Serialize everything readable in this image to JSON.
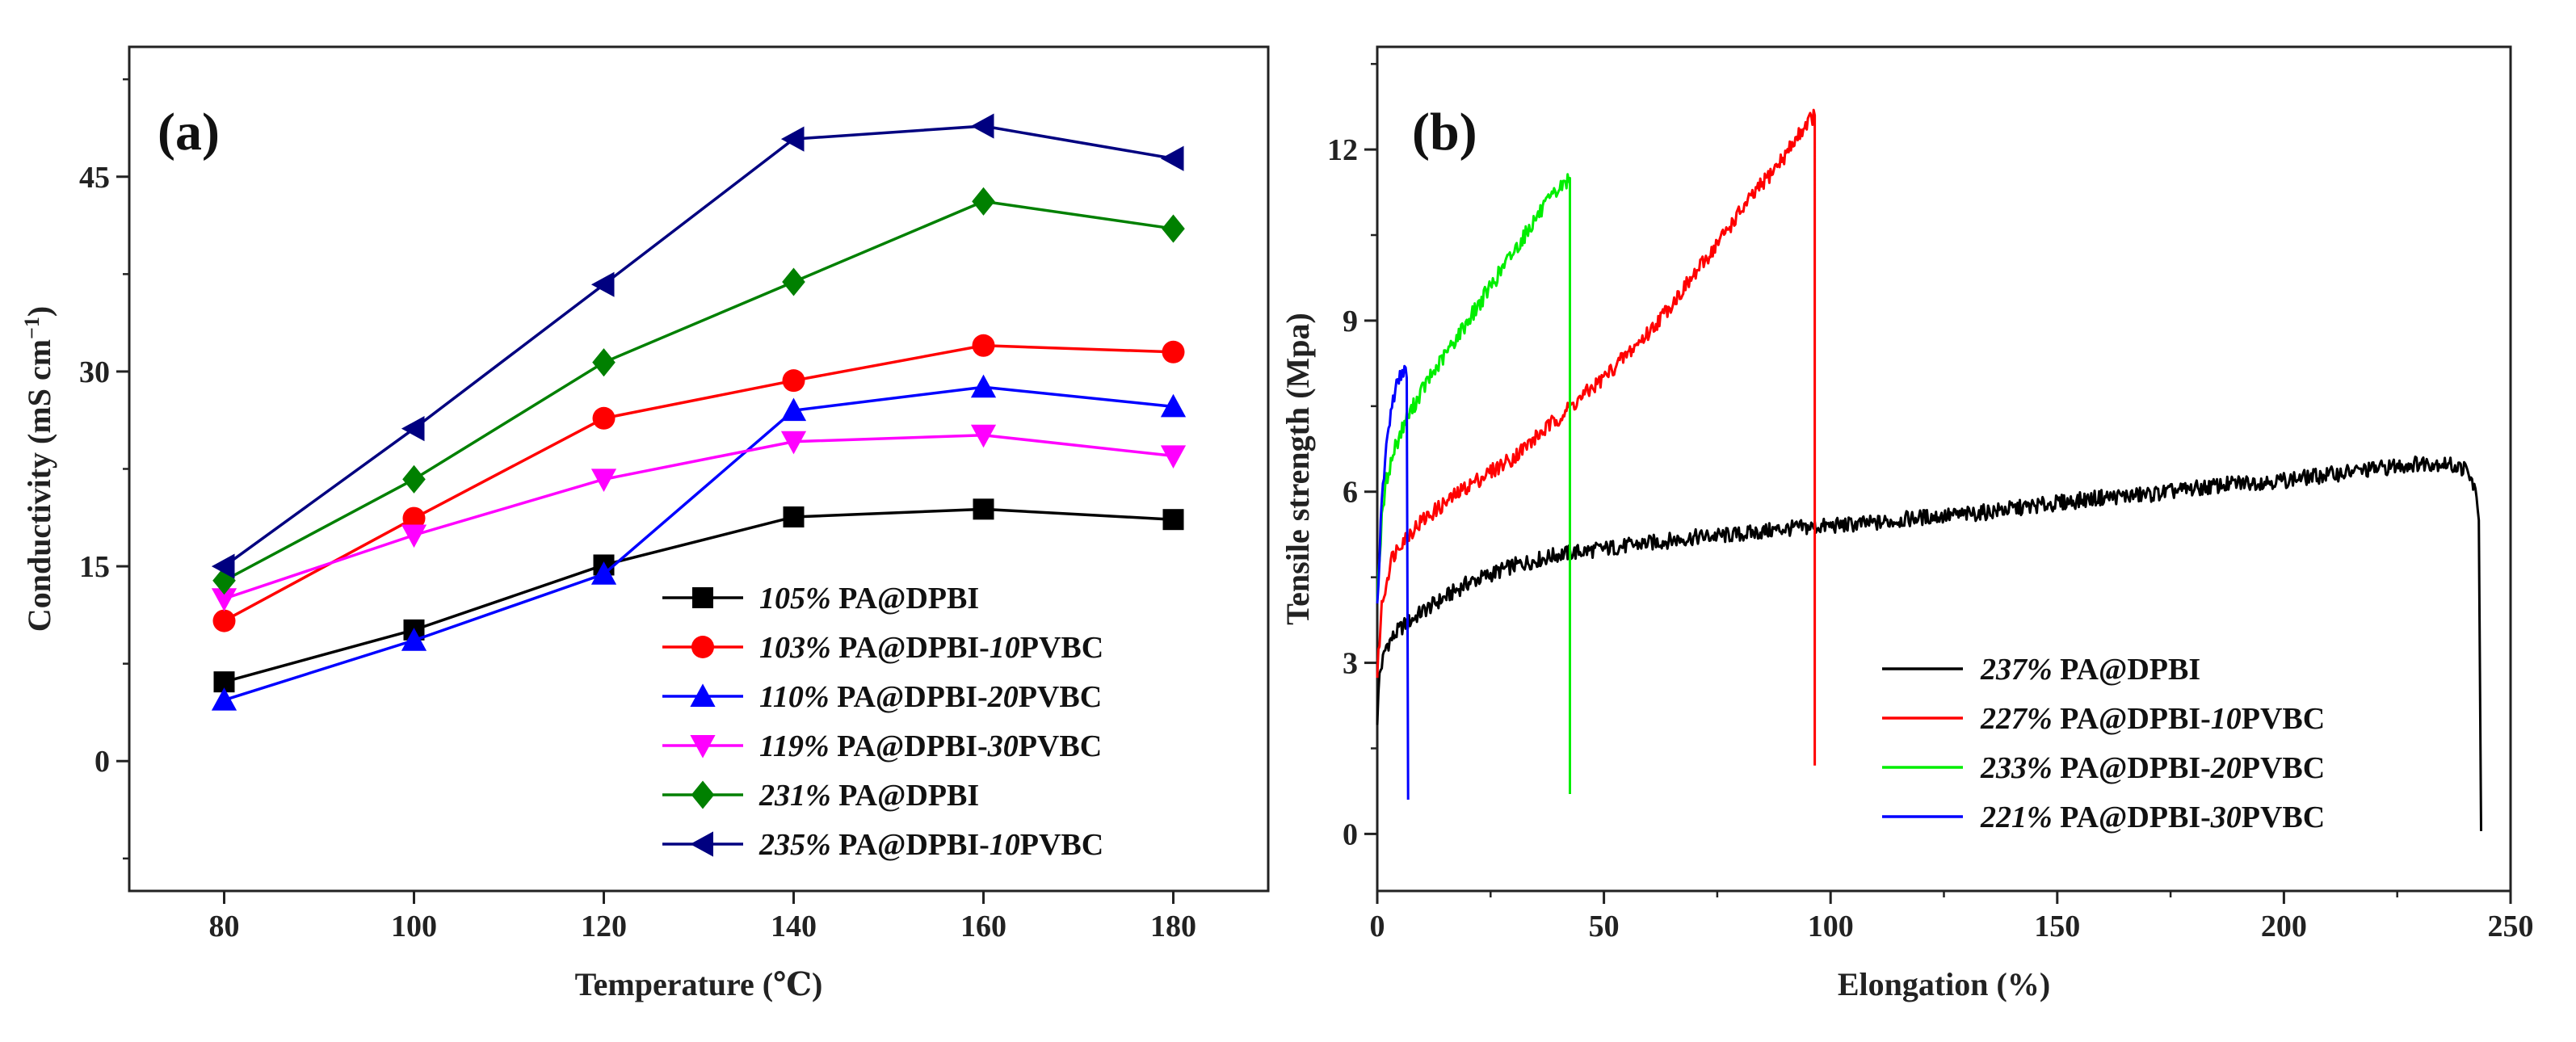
{
  "chart_data": [
    {
      "type": "line",
      "panel_label": "(a)",
      "xlabel": "Temperature (℃)",
      "ylabel": "Conductivity (mS cm",
      "ylabel_sup": "−1",
      "ylabel_close": ")",
      "xlim": [
        70,
        190
      ],
      "ylim": [
        -10,
        55
      ],
      "xticks": [
        80,
        100,
        120,
        140,
        160,
        180
      ],
      "yticks": [
        0,
        15,
        30,
        45
      ],
      "x": [
        80,
        100,
        120,
        140,
        160,
        180
      ],
      "legend_position": "bottom-right",
      "series": [
        {
          "pct": "105%",
          "a": " PA@DPBI",
          "ai": "",
          "b": "",
          "marker": "square",
          "color": "#000000",
          "values": [
            6.1,
            10.1,
            15.1,
            18.8,
            19.4,
            18.6
          ]
        },
        {
          "pct": "103%",
          "a": " PA@DPBI-",
          "ai": "10",
          "b": "PVBC",
          "marker": "circle",
          "color": "#ff0000",
          "values": [
            10.8,
            18.7,
            26.4,
            29.3,
            32.0,
            31.5
          ]
        },
        {
          "pct": "110%",
          "a": " PA@DPBI-",
          "ai": "20",
          "b": "PVBC",
          "marker": "triangle-up",
          "color": "#0000ff",
          "values": [
            4.7,
            9.3,
            14.4,
            27.0,
            28.8,
            27.3
          ]
        },
        {
          "pct": "119%",
          "a": " PA@DPBI-",
          "ai": "30",
          "b": "PVBC",
          "marker": "triangle-down",
          "color": "#ff00ff",
          "values": [
            12.5,
            17.4,
            21.7,
            24.6,
            25.1,
            23.5
          ]
        },
        {
          "pct": "231%",
          "a": " PA@DPBI",
          "ai": "",
          "b": "",
          "marker": "diamond",
          "color": "#008000",
          "values": [
            13.9,
            21.7,
            30.7,
            36.9,
            43.1,
            41.0
          ]
        },
        {
          "pct": "235%",
          "a": " PA@DPBI-",
          "ai": "10",
          "b": "PVBC",
          "marker": "triangle-left",
          "color": "#000080",
          "values": [
            15.0,
            25.6,
            36.7,
            47.9,
            48.9,
            46.4
          ]
        }
      ]
    },
    {
      "type": "line",
      "panel_label": "(b)",
      "xlabel": "Elongation (%)",
      "ylabel": "Tensile strength (Mpa)",
      "xlim": [
        0,
        250
      ],
      "ylim": [
        -1,
        13.8
      ],
      "xticks": [
        0,
        50,
        100,
        150,
        200,
        250
      ],
      "yticks": [
        0,
        3,
        6,
        9,
        12
      ],
      "legend_position": "bottom-right",
      "series": [
        {
          "pct": "237%",
          "a": " PA@DPBI",
          "ai": "",
          "b": "",
          "color": "#000000",
          "points": [
            [
              0,
              2.0
            ],
            [
              0.5,
              2.8
            ],
            [
              2,
              3.3
            ],
            [
              5,
              3.6
            ],
            [
              10,
              3.9
            ],
            [
              20,
              4.4
            ],
            [
              30,
              4.7
            ],
            [
              40,
              4.9
            ],
            [
              50,
              5.0
            ],
            [
              60,
              5.1
            ],
            [
              70,
              5.2
            ],
            [
              80,
              5.25
            ],
            [
              90,
              5.35
            ],
            [
              100,
              5.4
            ],
            [
              110,
              5.45
            ],
            [
              120,
              5.55
            ],
            [
              130,
              5.6
            ],
            [
              140,
              5.7
            ],
            [
              150,
              5.8
            ],
            [
              160,
              5.9
            ],
            [
              170,
              5.95
            ],
            [
              180,
              6.05
            ],
            [
              190,
              6.15
            ],
            [
              200,
              6.2
            ],
            [
              210,
              6.3
            ],
            [
              220,
              6.4
            ],
            [
              230,
              6.5
            ],
            [
              235,
              6.5
            ],
            [
              240,
              6.4
            ],
            [
              242,
              6.1
            ],
            [
              243,
              5.5
            ],
            [
              243.5,
              0.05
            ]
          ]
        },
        {
          "pct": "227%",
          "a": " PA@DPBI-",
          "ai": "10",
          "b": "PVBC",
          "color": "#ff0000",
          "points": [
            [
              0,
              2.8
            ],
            [
              1,
              4.0
            ],
            [
              3,
              4.8
            ],
            [
              5,
              5.1
            ],
            [
              10,
              5.5
            ],
            [
              15,
              5.8
            ],
            [
              20,
              6.1
            ],
            [
              30,
              6.6
            ],
            [
              40,
              7.3
            ],
            [
              50,
              8.0
            ],
            [
              60,
              8.8
            ],
            [
              70,
              9.8
            ],
            [
              80,
              10.9
            ],
            [
              90,
              11.9
            ],
            [
              95,
              12.5
            ],
            [
              96.5,
              12.6
            ],
            [
              96.5,
              1.2
            ]
          ]
        },
        {
          "pct": "233%",
          "a": " PA@DPBI-",
          "ai": "20",
          "b": "PVBC",
          "color": "#00ee00",
          "points": [
            [
              0,
              4.2
            ],
            [
              1,
              5.5
            ],
            [
              2,
              6.2
            ],
            [
              4,
              6.8
            ],
            [
              6,
              7.2
            ],
            [
              10,
              7.8
            ],
            [
              15,
              8.4
            ],
            [
              20,
              9.0
            ],
            [
              25,
              9.6
            ],
            [
              30,
              10.2
            ],
            [
              35,
              10.8
            ],
            [
              40,
              11.3
            ],
            [
              42.5,
              11.5
            ],
            [
              42.5,
              0.7
            ]
          ]
        },
        {
          "pct": "221%",
          "a": " PA@DPBI-",
          "ai": "30",
          "b": "PVBC",
          "color": "#0000ff",
          "points": [
            [
              0,
              4.0
            ],
            [
              1,
              5.8
            ],
            [
              2,
              6.8
            ],
            [
              3,
              7.4
            ],
            [
              4,
              7.8
            ],
            [
              5,
              8.0
            ],
            [
              6,
              8.2
            ],
            [
              6.5,
              8.0
            ],
            [
              6.8,
              0.6
            ]
          ]
        }
      ]
    }
  ]
}
